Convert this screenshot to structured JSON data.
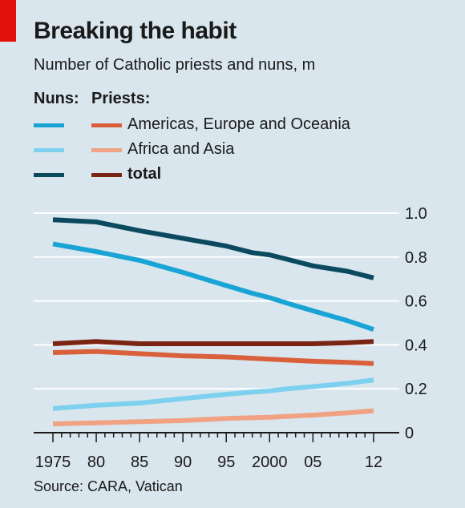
{
  "header": {
    "title": "Breaking the habit",
    "subtitle": "Number of Catholic priests and nuns, m"
  },
  "legend": {
    "nuns_header": "Nuns:",
    "priests_header": "Priests:",
    "rows": [
      {
        "label": "Americas, Europe and Oceania",
        "nuns_color": "#1aa3d5",
        "priests_color": "#d9603b",
        "bold": false
      },
      {
        "label": "Africa and Asia",
        "nuns_color": "#7dd0ee",
        "priests_color": "#f0a283",
        "bold": false
      },
      {
        "label": "total",
        "nuns_color": "#0b4a5e",
        "priests_color": "#7a2414",
        "bold": true
      }
    ]
  },
  "source": "Source: CARA, Vatican",
  "colors": {
    "background": "#d9e6ee",
    "gridline": "#ffffff",
    "accent": "#e3120b",
    "axis": "#1a1a1a"
  },
  "chart_data": {
    "type": "line",
    "title": "Breaking the habit",
    "subtitle": "Number of Catholic priests and nuns, m",
    "xlabel": "",
    "ylabel": "",
    "xlim": [
      1975,
      2012
    ],
    "ylim": [
      0,
      1.0
    ],
    "y_ticks": [
      0,
      0.2,
      0.4,
      0.6,
      0.8,
      1.0
    ],
    "y_tick_labels": [
      "0",
      "0.2",
      "0.4",
      "0.6",
      "0.8",
      "1.0"
    ],
    "x_ticks": [
      1975,
      1980,
      1985,
      1990,
      1995,
      2000,
      2005,
      2012
    ],
    "x_tick_labels": [
      "1975",
      "80",
      "85",
      "90",
      "95",
      "2000",
      "05",
      "12"
    ],
    "x_minor_ticks": [
      1976,
      1977,
      1978,
      1979,
      1981,
      1982,
      1983,
      1984,
      1986,
      1987,
      1988,
      1989,
      1991,
      1992,
      1993,
      1994,
      1996,
      1997,
      1998,
      1999,
      2001,
      2002,
      2003,
      2004,
      2006,
      2007,
      2008,
      2009,
      2010,
      2011
    ],
    "grid": true,
    "y_axis_position": "right",
    "series": [
      {
        "name": "Nuns: total",
        "color": "#0b4a5e",
        "points": [
          [
            1975,
            0.97
          ],
          [
            1980,
            0.96
          ],
          [
            1985,
            0.92
          ],
          [
            1990,
            0.885
          ],
          [
            1995,
            0.85
          ],
          [
            1998,
            0.82
          ],
          [
            2000,
            0.81
          ],
          [
            2002,
            0.79
          ],
          [
            2005,
            0.76
          ],
          [
            2009,
            0.735
          ],
          [
            2012,
            0.705
          ]
        ]
      },
      {
        "name": "Nuns: Americas, Europe and Oceania",
        "color": "#1aa3d5",
        "points": [
          [
            1975,
            0.86
          ],
          [
            1980,
            0.825
          ],
          [
            1985,
            0.785
          ],
          [
            1990,
            0.73
          ],
          [
            1995,
            0.67
          ],
          [
            1998,
            0.635
          ],
          [
            2000,
            0.615
          ],
          [
            2002,
            0.59
          ],
          [
            2005,
            0.555
          ],
          [
            2009,
            0.51
          ],
          [
            2012,
            0.47
          ]
        ]
      },
      {
        "name": "Priests: total",
        "color": "#7a2414",
        "points": [
          [
            1975,
            0.405
          ],
          [
            1980,
            0.415
          ],
          [
            1985,
            0.405
          ],
          [
            1990,
            0.405
          ],
          [
            1995,
            0.405
          ],
          [
            2000,
            0.405
          ],
          [
            2005,
            0.405
          ],
          [
            2009,
            0.41
          ],
          [
            2012,
            0.415
          ]
        ]
      },
      {
        "name": "Priests: Americas, Europe and Oceania",
        "color": "#d9603b",
        "points": [
          [
            1975,
            0.365
          ],
          [
            1980,
            0.37
          ],
          [
            1985,
            0.36
          ],
          [
            1990,
            0.35
          ],
          [
            1995,
            0.345
          ],
          [
            2000,
            0.335
          ],
          [
            2005,
            0.325
          ],
          [
            2009,
            0.32
          ],
          [
            2012,
            0.315
          ]
        ]
      },
      {
        "name": "Nuns: Africa and Asia",
        "color": "#7dd0ee",
        "points": [
          [
            1975,
            0.11
          ],
          [
            1980,
            0.125
          ],
          [
            1985,
            0.135
          ],
          [
            1990,
            0.155
          ],
          [
            1995,
            0.175
          ],
          [
            1998,
            0.185
          ],
          [
            2000,
            0.19
          ],
          [
            2002,
            0.2
          ],
          [
            2005,
            0.21
          ],
          [
            2009,
            0.225
          ],
          [
            2012,
            0.24
          ]
        ]
      },
      {
        "name": "Priests: Africa and Asia",
        "color": "#f0a283",
        "points": [
          [
            1975,
            0.04
          ],
          [
            1980,
            0.045
          ],
          [
            1985,
            0.05
          ],
          [
            1990,
            0.055
          ],
          [
            1995,
            0.065
          ],
          [
            2000,
            0.07
          ],
          [
            2005,
            0.08
          ],
          [
            2009,
            0.09
          ],
          [
            2012,
            0.1
          ]
        ]
      }
    ]
  }
}
